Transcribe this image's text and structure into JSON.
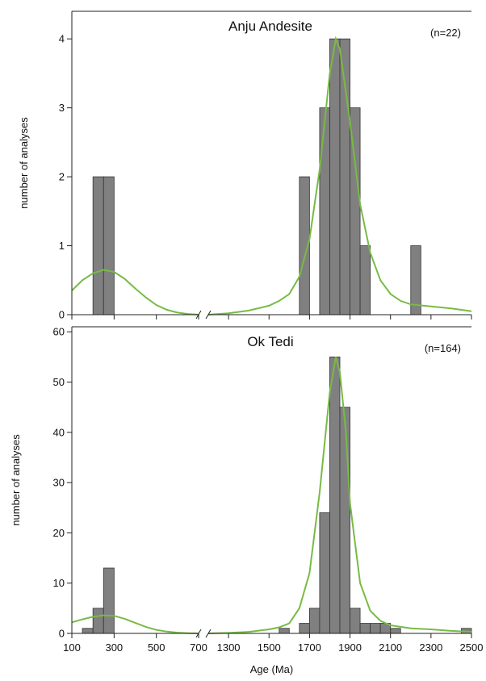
{
  "chart_data": {
    "type": "bar",
    "xlabel": "Age (Ma)",
    "x_ticks": [
      100,
      300,
      500,
      700,
      1300,
      1500,
      1700,
      1900,
      2100,
      2300,
      2500
    ],
    "axis_break": [
      700,
      1200
    ],
    "bin_width": 50,
    "bar_color": "#808080",
    "curve_color": "#77bb44",
    "panels": [
      {
        "title": "Anju Andesite",
        "count_label": "(n=22)",
        "ylabel": "number of analyses",
        "ylim": [
          0,
          4.4
        ],
        "y_ticks": [
          0,
          1,
          2,
          3,
          4
        ],
        "bars": [
          {
            "x0": 200,
            "x1": 250,
            "value": 2
          },
          {
            "x0": 250,
            "x1": 300,
            "value": 2
          },
          {
            "x0": 1650,
            "x1": 1700,
            "value": 2
          },
          {
            "x0": 1750,
            "x1": 1800,
            "value": 3
          },
          {
            "x0": 1800,
            "x1": 1850,
            "value": 4
          },
          {
            "x0": 1850,
            "x1": 1900,
            "value": 4
          },
          {
            "x0": 1900,
            "x1": 1950,
            "value": 3
          },
          {
            "x0": 1950,
            "x1": 2000,
            "value": 1
          },
          {
            "x0": 2200,
            "x1": 2250,
            "value": 1
          }
        ],
        "curve": [
          [
            100,
            0.35
          ],
          [
            150,
            0.5
          ],
          [
            200,
            0.6
          ],
          [
            250,
            0.65
          ],
          [
            300,
            0.62
          ],
          [
            350,
            0.52
          ],
          [
            400,
            0.38
          ],
          [
            450,
            0.25
          ],
          [
            500,
            0.14
          ],
          [
            550,
            0.07
          ],
          [
            600,
            0.03
          ],
          [
            650,
            0.01
          ],
          [
            700,
            0.0
          ],
          [
            1200,
            0.0
          ],
          [
            1300,
            0.02
          ],
          [
            1400,
            0.06
          ],
          [
            1500,
            0.13
          ],
          [
            1550,
            0.2
          ],
          [
            1600,
            0.3
          ],
          [
            1650,
            0.55
          ],
          [
            1700,
            1.1
          ],
          [
            1750,
            2.1
          ],
          [
            1800,
            3.5
          ],
          [
            1830,
            4.0
          ],
          [
            1850,
            3.85
          ],
          [
            1900,
            2.8
          ],
          [
            1950,
            1.6
          ],
          [
            2000,
            0.9
          ],
          [
            2050,
            0.5
          ],
          [
            2100,
            0.3
          ],
          [
            2150,
            0.2
          ],
          [
            2200,
            0.15
          ],
          [
            2300,
            0.12
          ],
          [
            2400,
            0.09
          ],
          [
            2500,
            0.05
          ]
        ]
      },
      {
        "title": "Ok Tedi",
        "count_label": "(n=164)",
        "ylabel": "number of analyses",
        "ylim": [
          0,
          61
        ],
        "y_ticks": [
          0,
          10,
          20,
          30,
          40,
          50,
          60
        ],
        "bars": [
          {
            "x0": 150,
            "x1": 200,
            "value": 1
          },
          {
            "x0": 200,
            "x1": 250,
            "value": 5
          },
          {
            "x0": 250,
            "x1": 300,
            "value": 13
          },
          {
            "x0": 1550,
            "x1": 1600,
            "value": 1
          },
          {
            "x0": 1650,
            "x1": 1700,
            "value": 2
          },
          {
            "x0": 1700,
            "x1": 1750,
            "value": 5
          },
          {
            "x0": 1750,
            "x1": 1800,
            "value": 24
          },
          {
            "x0": 1800,
            "x1": 1850,
            "value": 55
          },
          {
            "x0": 1850,
            "x1": 1900,
            "value": 45
          },
          {
            "x0": 1900,
            "x1": 1950,
            "value": 5
          },
          {
            "x0": 1950,
            "x1": 2000,
            "value": 2
          },
          {
            "x0": 2000,
            "x1": 2050,
            "value": 2
          },
          {
            "x0": 2050,
            "x1": 2100,
            "value": 2
          },
          {
            "x0": 2100,
            "x1": 2150,
            "value": 1
          },
          {
            "x0": 2450,
            "x1": 2500,
            "value": 1
          }
        ],
        "curve": [
          [
            100,
            2.2
          ],
          [
            150,
            2.8
          ],
          [
            200,
            3.3
          ],
          [
            250,
            3.6
          ],
          [
            300,
            3.5
          ],
          [
            350,
            2.9
          ],
          [
            400,
            2.1
          ],
          [
            450,
            1.3
          ],
          [
            500,
            0.7
          ],
          [
            550,
            0.35
          ],
          [
            600,
            0.15
          ],
          [
            650,
            0.05
          ],
          [
            700,
            0.0
          ],
          [
            1200,
            0.0
          ],
          [
            1300,
            0.1
          ],
          [
            1400,
            0.3
          ],
          [
            1500,
            0.8
          ],
          [
            1550,
            1.2
          ],
          [
            1600,
            2.0
          ],
          [
            1650,
            5.0
          ],
          [
            1700,
            12
          ],
          [
            1750,
            28
          ],
          [
            1800,
            48
          ],
          [
            1830,
            55
          ],
          [
            1850,
            52
          ],
          [
            1880,
            40
          ],
          [
            1900,
            26
          ],
          [
            1950,
            10
          ],
          [
            2000,
            4.5
          ],
          [
            2050,
            2.5
          ],
          [
            2100,
            1.6
          ],
          [
            2200,
            1.0
          ],
          [
            2300,
            0.8
          ],
          [
            2400,
            0.5
          ],
          [
            2500,
            0.3
          ]
        ]
      }
    ]
  }
}
